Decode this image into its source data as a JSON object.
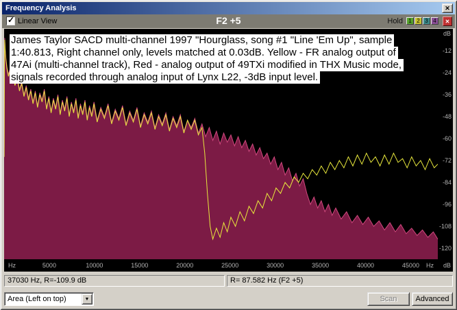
{
  "window": {
    "title": "Frequency Analysis"
  },
  "icons": {
    "close": "✕",
    "clear": "✕",
    "dropdown": "▼",
    "check": "✓"
  },
  "colors": {
    "titlebar_left": "#0a246a",
    "titlebar_right": "#a6caf0",
    "toolbar_bg": "#7d7b72",
    "plot_bg": "#000000",
    "clear_button": "#c03232"
  },
  "toolbar": {
    "linear_view_label": "Linear View",
    "linear_view_checked": true,
    "center_title": "F2 +5",
    "hold_label": "Hold",
    "hold_buttons": [
      {
        "label": "1",
        "color": "#55a02c"
      },
      {
        "label": "2",
        "color": "#c8c22e"
      },
      {
        "label": "3",
        "color": "#3c8a8a"
      },
      {
        "label": "4",
        "color": "#8a4f96"
      }
    ]
  },
  "annotation": {
    "lines": [
      "James Taylor SACD multi-channel 1997 \"Hourglass, song #1 \"Line 'Em Up\", sample",
      "1:40.813, Right channel only, levels matched at 0.03dB. Yellow - FR analog output of",
      "47Ai (multi-channel track), Red - analog output of 49TXi modified in THX Music mode,",
      "signals recorded through analog input of Lynx L22, -3dB input level."
    ]
  },
  "axis": {
    "x_unit": "Hz",
    "y_unit": "dB"
  },
  "chart_data": {
    "type": "area",
    "title": "",
    "xlabel": "Hz",
    "ylabel": "dB",
    "xlim": [
      0,
      48000
    ],
    "ylim": [
      -126,
      0
    ],
    "grid": false,
    "legend": "none",
    "x_ticks": [
      5000,
      10000,
      15000,
      20000,
      25000,
      30000,
      35000,
      40000,
      45000
    ],
    "y_ticks": [
      -12,
      -24,
      -36,
      -48,
      -60,
      -72,
      -84,
      -96,
      -108,
      -120
    ],
    "series": [
      {
        "name": "49TXi analog output (Red, THX Music mode)",
        "type": "area",
        "fill": "#7c1b45",
        "stroke": "#d0487e",
        "points": [
          [
            10,
            -65
          ],
          [
            40,
            -16
          ],
          [
            70,
            -5
          ],
          [
            120,
            -11
          ],
          [
            200,
            -16
          ],
          [
            320,
            -21
          ],
          [
            480,
            -25
          ],
          [
            650,
            -22
          ],
          [
            850,
            -27
          ],
          [
            1000,
            -24
          ],
          [
            1200,
            -30
          ],
          [
            1450,
            -26
          ],
          [
            1700,
            -33
          ],
          [
            1950,
            -29
          ],
          [
            2200,
            -36
          ],
          [
            2450,
            -31
          ],
          [
            2700,
            -38
          ],
          [
            2950,
            -33
          ],
          [
            3200,
            -40
          ],
          [
            3450,
            -34
          ],
          [
            3700,
            -42
          ],
          [
            3950,
            -35
          ],
          [
            4200,
            -39
          ],
          [
            4450,
            -33
          ],
          [
            4700,
            -43
          ],
          [
            4950,
            -37
          ],
          [
            5200,
            -45
          ],
          [
            5450,
            -38
          ],
          [
            5700,
            -43
          ],
          [
            5950,
            -36
          ],
          [
            6200,
            -46
          ],
          [
            6450,
            -39
          ],
          [
            6700,
            -44
          ],
          [
            6950,
            -37
          ],
          [
            7200,
            -47
          ],
          [
            7450,
            -40
          ],
          [
            7700,
            -45
          ],
          [
            7950,
            -38
          ],
          [
            8200,
            -48
          ],
          [
            8450,
            -41
          ],
          [
            8700,
            -46
          ],
          [
            8950,
            -39
          ],
          [
            9200,
            -49
          ],
          [
            9450,
            -42
          ],
          [
            9700,
            -47
          ],
          [
            9950,
            -40
          ],
          [
            10300,
            -50
          ],
          [
            10700,
            -43
          ],
          [
            11100,
            -48
          ],
          [
            11500,
            -41
          ],
          [
            11900,
            -51
          ],
          [
            12300,
            -44
          ],
          [
            12700,
            -49
          ],
          [
            13100,
            -42
          ],
          [
            13500,
            -52
          ],
          [
            13900,
            -45
          ],
          [
            14300,
            -50
          ],
          [
            14700,
            -43
          ],
          [
            15100,
            -53
          ],
          [
            15500,
            -46
          ],
          [
            15900,
            -51
          ],
          [
            16300,
            -45
          ],
          [
            16700,
            -54
          ],
          [
            17100,
            -47
          ],
          [
            17500,
            -52
          ],
          [
            17900,
            -46
          ],
          [
            18300,
            -55
          ],
          [
            18700,
            -48
          ],
          [
            19100,
            -53
          ],
          [
            19500,
            -47
          ],
          [
            19900,
            -56
          ],
          [
            20300,
            -50
          ],
          [
            20700,
            -54
          ],
          [
            21100,
            -49
          ],
          [
            21500,
            -57
          ],
          [
            21900,
            -52
          ],
          [
            22300,
            -59
          ],
          [
            22700,
            -54
          ],
          [
            23100,
            -61
          ],
          [
            23500,
            -56
          ],
          [
            23900,
            -63
          ],
          [
            24300,
            -57
          ],
          [
            24700,
            -62
          ],
          [
            25100,
            -58
          ],
          [
            25500,
            -64
          ],
          [
            25900,
            -59
          ],
          [
            26300,
            -65
          ],
          [
            26700,
            -61
          ],
          [
            27100,
            -67
          ],
          [
            27500,
            -63
          ],
          [
            27900,
            -69
          ],
          [
            28300,
            -65
          ],
          [
            28700,
            -71
          ],
          [
            29100,
            -68
          ],
          [
            29500,
            -74
          ],
          [
            29900,
            -70
          ],
          [
            30300,
            -77
          ],
          [
            30700,
            -73
          ],
          [
            31100,
            -80
          ],
          [
            31500,
            -76
          ],
          [
            31900,
            -83
          ],
          [
            32300,
            -79
          ],
          [
            32700,
            -86
          ],
          [
            33100,
            -82
          ],
          [
            33500,
            -90
          ],
          [
            33900,
            -96
          ],
          [
            34300,
            -92
          ],
          [
            34700,
            -98
          ],
          [
            35100,
            -94
          ],
          [
            35500,
            -100
          ],
          [
            35900,
            -96
          ],
          [
            36300,
            -102
          ],
          [
            36700,
            -98
          ],
          [
            37300,
            -104
          ],
          [
            37900,
            -100
          ],
          [
            38500,
            -106
          ],
          [
            39100,
            -102
          ],
          [
            39700,
            -107
          ],
          [
            40300,
            -103
          ],
          [
            40900,
            -108
          ],
          [
            41500,
            -105
          ],
          [
            42100,
            -110
          ],
          [
            42700,
            -106
          ],
          [
            43300,
            -111
          ],
          [
            43900,
            -107
          ],
          [
            44500,
            -112
          ],
          [
            45100,
            -109
          ],
          [
            45700,
            -113
          ],
          [
            46300,
            -110
          ],
          [
            46900,
            -114
          ],
          [
            47500,
            -111
          ],
          [
            48000,
            -115
          ]
        ]
      },
      {
        "name": "47Ai analog output (Yellow, multi-channel track)",
        "type": "line",
        "stroke": "#e8e83c",
        "points": [
          [
            10,
            -70
          ],
          [
            40,
            -18
          ],
          [
            70,
            -6
          ],
          [
            120,
            -12
          ],
          [
            200,
            -17
          ],
          [
            320,
            -22
          ],
          [
            480,
            -26
          ],
          [
            650,
            -23
          ],
          [
            850,
            -28
          ],
          [
            1000,
            -25
          ],
          [
            1200,
            -31
          ],
          [
            1450,
            -27
          ],
          [
            1700,
            -34
          ],
          [
            1950,
            -30
          ],
          [
            2200,
            -37
          ],
          [
            2450,
            -32
          ],
          [
            2700,
            -39
          ],
          [
            2950,
            -34
          ],
          [
            3200,
            -41
          ],
          [
            3450,
            -35
          ],
          [
            3700,
            -43
          ],
          [
            3950,
            -36
          ],
          [
            4200,
            -40
          ],
          [
            4450,
            -34
          ],
          [
            4700,
            -44
          ],
          [
            4950,
            -38
          ],
          [
            5200,
            -46
          ],
          [
            5450,
            -39
          ],
          [
            5700,
            -44
          ],
          [
            5950,
            -37
          ],
          [
            6200,
            -47
          ],
          [
            6450,
            -40
          ],
          [
            6700,
            -45
          ],
          [
            6950,
            -38
          ],
          [
            7200,
            -48
          ],
          [
            7450,
            -41
          ],
          [
            7700,
            -46
          ],
          [
            7950,
            -39
          ],
          [
            8200,
            -49
          ],
          [
            8450,
            -42
          ],
          [
            8700,
            -47
          ],
          [
            8950,
            -40
          ],
          [
            9200,
            -50
          ],
          [
            9450,
            -43
          ],
          [
            9700,
            -48
          ],
          [
            9950,
            -41
          ],
          [
            10300,
            -51
          ],
          [
            10700,
            -44
          ],
          [
            11100,
            -49
          ],
          [
            11500,
            -42
          ],
          [
            11900,
            -52
          ],
          [
            12300,
            -45
          ],
          [
            12700,
            -50
          ],
          [
            13100,
            -43
          ],
          [
            13500,
            -53
          ],
          [
            13900,
            -46
          ],
          [
            14300,
            -51
          ],
          [
            14700,
            -44
          ],
          [
            15100,
            -54
          ],
          [
            15500,
            -47
          ],
          [
            15900,
            -52
          ],
          [
            16300,
            -46
          ],
          [
            16700,
            -55
          ],
          [
            17100,
            -48
          ],
          [
            17500,
            -53
          ],
          [
            17900,
            -47
          ],
          [
            18300,
            -56
          ],
          [
            18700,
            -49
          ],
          [
            19100,
            -54
          ],
          [
            19500,
            -48
          ],
          [
            19900,
            -57
          ],
          [
            20300,
            -50
          ],
          [
            20700,
            -55
          ],
          [
            21100,
            -50
          ],
          [
            21500,
            -58
          ],
          [
            21900,
            -54
          ],
          [
            22200,
            -68
          ],
          [
            22500,
            -90
          ],
          [
            22800,
            -108
          ],
          [
            23100,
            -115
          ],
          [
            23500,
            -109
          ],
          [
            23900,
            -114
          ],
          [
            24300,
            -106
          ],
          [
            24700,
            -111
          ],
          [
            25100,
            -103
          ],
          [
            25600,
            -108
          ],
          [
            26100,
            -100
          ],
          [
            26600,
            -105
          ],
          [
            27100,
            -97
          ],
          [
            27600,
            -101
          ],
          [
            28100,
            -94
          ],
          [
            28600,
            -98
          ],
          [
            29100,
            -90
          ],
          [
            29600,
            -94
          ],
          [
            30100,
            -87
          ],
          [
            30600,
            -90
          ],
          [
            31100,
            -84
          ],
          [
            31600,
            -87
          ],
          [
            32100,
            -81
          ],
          [
            32600,
            -84
          ],
          [
            33100,
            -79
          ],
          [
            33600,
            -82
          ],
          [
            34100,
            -77
          ],
          [
            34600,
            -80
          ],
          [
            35100,
            -75
          ],
          [
            35600,
            -79
          ],
          [
            36100,
            -73
          ],
          [
            36600,
            -77
          ],
          [
            37100,
            -72
          ],
          [
            37600,
            -76
          ],
          [
            38100,
            -70
          ],
          [
            38600,
            -75
          ],
          [
            39100,
            -69
          ],
          [
            39600,
            -74
          ],
          [
            40100,
            -68
          ],
          [
            40600,
            -73
          ],
          [
            41100,
            -70
          ],
          [
            41600,
            -75
          ],
          [
            42100,
            -69
          ],
          [
            42600,
            -74
          ],
          [
            43100,
            -68
          ],
          [
            43600,
            -73
          ],
          [
            44100,
            -71
          ],
          [
            44600,
            -76
          ],
          [
            45100,
            -70
          ],
          [
            45600,
            -75
          ],
          [
            46100,
            -72
          ],
          [
            46600,
            -77
          ],
          [
            47100,
            -71
          ],
          [
            47600,
            -76
          ],
          [
            48000,
            -74
          ]
        ]
      }
    ]
  },
  "statusbar": {
    "left": "37030 Hz, R=-109.9 dB",
    "right": "R= 87.582 Hz (F2 +5)"
  },
  "controls": {
    "area_select_value": "Area (Left on top)",
    "scan_label": "Scan",
    "advanced_label": "Advanced"
  }
}
